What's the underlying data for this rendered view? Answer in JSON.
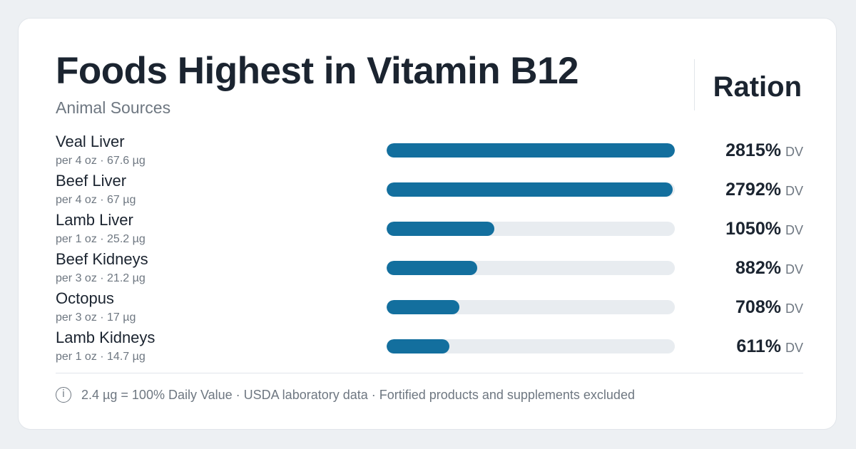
{
  "header": {
    "title": "Foods Highest in Vitamin B12",
    "subtitle": "Animal Sources",
    "brand": "Ration"
  },
  "chart_data": {
    "type": "bar",
    "orientation": "horizontal",
    "title": "Foods Highest in Vitamin B12",
    "subtitle": "Animal Sources",
    "value_unit": "DV",
    "xlim": [
      0,
      2815
    ],
    "grid": false,
    "legend": "none",
    "categories": [
      "Veal Liver",
      "Beef Liver",
      "Lamb Liver",
      "Beef Kidneys",
      "Octopus",
      "Lamb Kidneys"
    ],
    "values": [
      2815,
      2792,
      1050,
      882,
      708,
      611
    ],
    "rows": [
      {
        "name": "Veal Liver",
        "serving": "per 4 oz · 67.6 µg",
        "value": 2815,
        "label": "2815%"
      },
      {
        "name": "Beef Liver",
        "serving": "per 4 oz · 67 µg",
        "value": 2792,
        "label": "2792%"
      },
      {
        "name": "Lamb Liver",
        "serving": "per 1 oz · 25.2 µg",
        "value": 1050,
        "label": "1050%"
      },
      {
        "name": "Beef Kidneys",
        "serving": "per 3 oz · 21.2 µg",
        "value": 882,
        "label": "882%"
      },
      {
        "name": "Octopus",
        "serving": "per 3 oz · 17 µg",
        "value": 708,
        "label": "708%"
      },
      {
        "name": "Lamb Kidneys",
        "serving": "per 1 oz · 14.7 µg",
        "value": 611,
        "label": "611%"
      }
    ],
    "unit_label": "DV",
    "bar_color": "#136f9e",
    "track_color": "#e8ecf0"
  },
  "footer": {
    "icon": "info-icon",
    "icon_glyph": "i",
    "text": "2.4 µg = 100% Daily Value · USDA laboratory data · Fortified products and supplements excluded"
  }
}
